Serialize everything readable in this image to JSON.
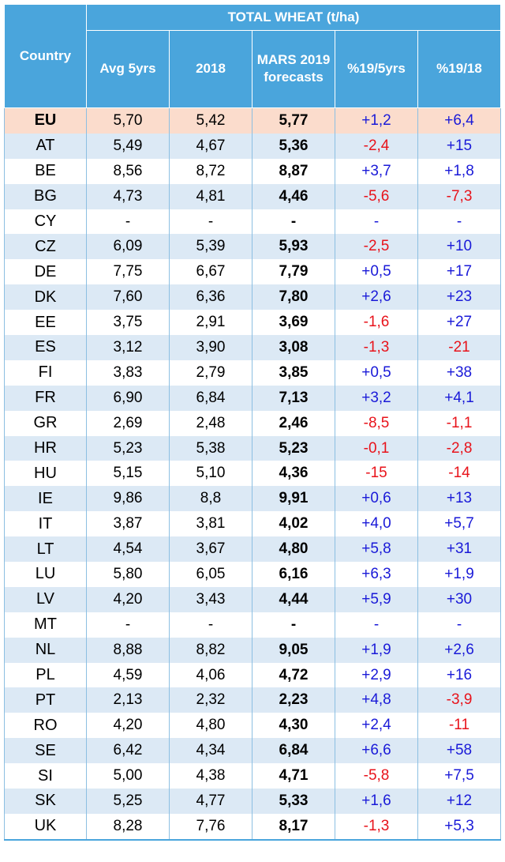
{
  "header": {
    "title": "TOTAL WHEAT (t/ha)",
    "country": "Country",
    "cols": [
      "Avg 5yrs",
      "2018",
      "MARS 2019 forecasts",
      "%19/5yrs",
      "%19/18"
    ],
    "mars_line1": "MARS 2019",
    "mars_line2": "forecasts"
  },
  "colors": {
    "header_bg": "#4aa5dc",
    "row_alt": "#dce9f5",
    "eu_row": "#fbdccc",
    "positive": "#1a1ad8",
    "negative": "#e8131b"
  },
  "rows": [
    [
      "EU",
      "5,70",
      "5,42",
      "5,77",
      "+1,2",
      "+6,4"
    ],
    [
      "AT",
      "5,49",
      "4,67",
      "5,36",
      "-2,4",
      "+15"
    ],
    [
      "BE",
      "8,56",
      "8,72",
      "8,87",
      "+3,7",
      "+1,8"
    ],
    [
      "BG",
      "4,73",
      "4,81",
      "4,46",
      "-5,6",
      "-7,3"
    ],
    [
      "CY",
      "-",
      "-",
      "-",
      "-",
      "-"
    ],
    [
      "CZ",
      "6,09",
      "5,39",
      "5,93",
      "-2,5",
      "+10"
    ],
    [
      "DE",
      "7,75",
      "6,67",
      "7,79",
      "+0,5",
      "+17"
    ],
    [
      "DK",
      "7,60",
      "6,36",
      "7,80",
      "+2,6",
      "+23"
    ],
    [
      "EE",
      "3,75",
      "2,91",
      "3,69",
      "-1,6",
      "+27"
    ],
    [
      "ES",
      "3,12",
      "3,90",
      "3,08",
      "-1,3",
      "-21"
    ],
    [
      "FI",
      "3,83",
      "2,79",
      "3,85",
      "+0,5",
      "+38"
    ],
    [
      "FR",
      "6,90",
      "6,84",
      "7,13",
      "+3,2",
      "+4,1"
    ],
    [
      "GR",
      "2,69",
      "2,48",
      "2,46",
      "-8,5",
      "-1,1"
    ],
    [
      "HR",
      "5,23",
      "5,38",
      "5,23",
      "-0,1",
      "-2,8"
    ],
    [
      "HU",
      "5,15",
      "5,10",
      "4,36",
      "-15",
      "-14"
    ],
    [
      "IE",
      "9,86",
      "8,8",
      "9,91",
      "+0,6",
      "+13"
    ],
    [
      "IT",
      "3,87",
      "3,81",
      "4,02",
      "+4,0",
      "+5,7"
    ],
    [
      "LT",
      "4,54",
      "3,67",
      "4,80",
      "+5,8",
      "+31"
    ],
    [
      "LU",
      "5,80",
      "6,05",
      "6,16",
      "+6,3",
      "+1,9"
    ],
    [
      "LV",
      "4,20",
      "3,43",
      "4,44",
      "+5,9",
      "+30"
    ],
    [
      "MT",
      "-",
      "-",
      "-",
      "-",
      "-"
    ],
    [
      "NL",
      "8,88",
      "8,82",
      "9,05",
      "+1,9",
      "+2,6"
    ],
    [
      "PL",
      "4,59",
      "4,06",
      "4,72",
      "+2,9",
      "+16"
    ],
    [
      "PT",
      "2,13",
      "2,32",
      "2,23",
      "+4,8",
      "-3,9"
    ],
    [
      "RO",
      "4,20",
      "4,80",
      "4,30",
      "+2,4",
      "-11"
    ],
    [
      "SE",
      "6,42",
      "4,34",
      "6,84",
      "+6,6",
      "+58"
    ],
    [
      "SI",
      "5,00",
      "4,38",
      "4,71",
      "-5,8",
      "+7,5"
    ],
    [
      "SK",
      "5,25",
      "4,77",
      "5,33",
      "+1,6",
      "+12"
    ],
    [
      "UK",
      "8,28",
      "7,76",
      "8,17",
      "-1,3",
      "+5,3"
    ]
  ]
}
